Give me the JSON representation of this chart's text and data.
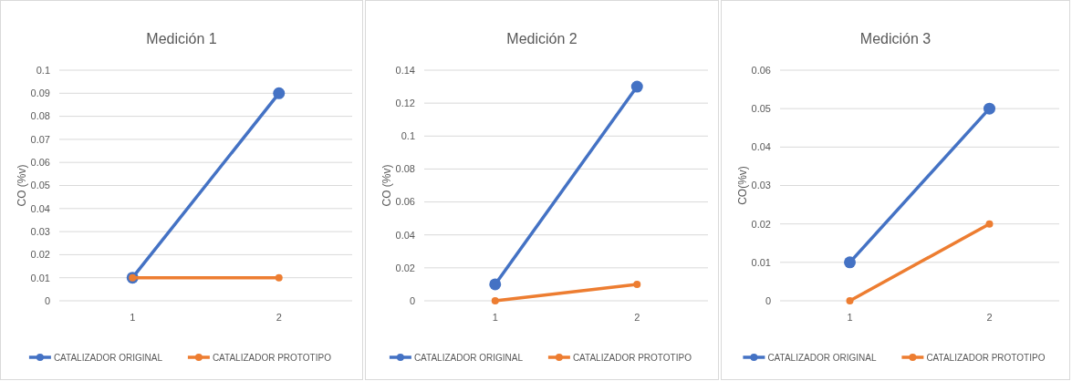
{
  "chart_data": [
    {
      "type": "line",
      "title": "Medición 1",
      "ylabel": "CO (%v)",
      "categories": [
        "1",
        "2"
      ],
      "series": [
        {
          "name": "CATALIZADOR ORIGINAL",
          "color": "#4472c4",
          "values": [
            0.01,
            0.09
          ]
        },
        {
          "name": "CATALIZADOR PROTOTIPO",
          "color": "#ed7d31",
          "values": [
            0.01,
            0.01
          ]
        }
      ],
      "ylim": [
        0,
        0.1
      ],
      "yticks": [
        0,
        0.01,
        0.02,
        0.03,
        0.04,
        0.05,
        0.06,
        0.07,
        0.08,
        0.09,
        0.1
      ],
      "grid": "y",
      "legend": "bottom",
      "marker": "circle",
      "line_style": "solid"
    },
    {
      "type": "line",
      "title": "Medición 2",
      "ylabel": "CO (%v)",
      "categories": [
        "1",
        "2"
      ],
      "series": [
        {
          "name": "CATALIZADOR ORIGINAL",
          "color": "#4472c4",
          "values": [
            0.01,
            0.13
          ]
        },
        {
          "name": "CATALIZADOR PROTOTIPO",
          "color": "#ed7d31",
          "values": [
            0,
            0.01
          ]
        }
      ],
      "ylim": [
        0,
        0.14
      ],
      "yticks": [
        0,
        0.02,
        0.04,
        0.06,
        0.08,
        0.1,
        0.12,
        0.14
      ],
      "grid": "y",
      "legend": "bottom",
      "marker": "circle",
      "line_style": "solid"
    },
    {
      "type": "line",
      "title": "Medición 3",
      "ylabel": "CO(%v)",
      "categories": [
        "1",
        "2"
      ],
      "series": [
        {
          "name": "CATALIZADOR ORIGINAL",
          "color": "#4472c4",
          "values": [
            0.01,
            0.05
          ]
        },
        {
          "name": "CATALIZADOR PROTOTIPO",
          "color": "#ed7d31",
          "values": [
            0,
            0.02
          ]
        }
      ],
      "ylim": [
        0,
        0.06
      ],
      "yticks": [
        0,
        0.01,
        0.02,
        0.03,
        0.04,
        0.05,
        0.06
      ],
      "grid": "y",
      "legend": "bottom",
      "marker": "circle",
      "line_style": "solid"
    }
  ]
}
